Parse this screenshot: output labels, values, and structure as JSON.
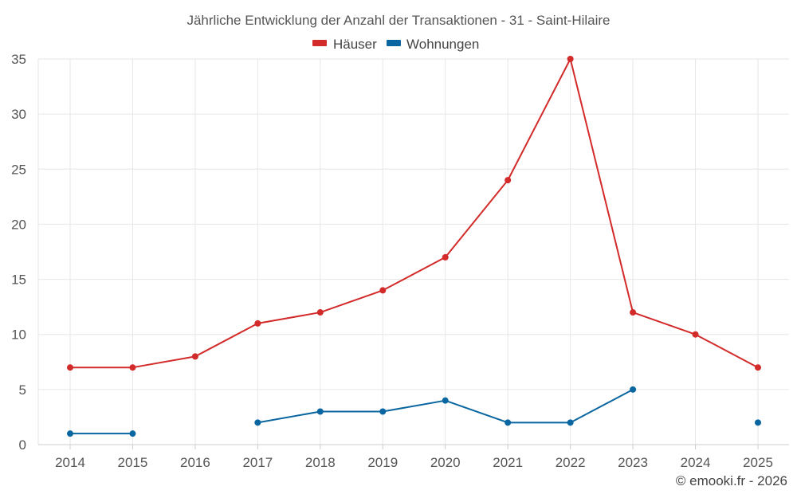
{
  "chart_data": {
    "type": "line",
    "title": "Jährliche Entwicklung der Anzahl der Transaktionen - 31 - Saint-Hilaire",
    "categories": [
      "2014",
      "2015",
      "2016",
      "2017",
      "2018",
      "2019",
      "2020",
      "2021",
      "2022",
      "2023",
      "2024",
      "2025"
    ],
    "y_ticks": [
      "0",
      "5",
      "10",
      "15",
      "20",
      "25",
      "30",
      "35"
    ],
    "ylim": [
      0,
      35
    ],
    "grid": true,
    "legend_position": "top-center",
    "series": [
      {
        "name": "Häuser",
        "color": "#d32a2a",
        "values": [
          7,
          7,
          8,
          11,
          12,
          14,
          17,
          24,
          35,
          12,
          10,
          7
        ]
      },
      {
        "name": "Wohnungen",
        "color": "#0a66a0",
        "values": [
          1,
          1,
          null,
          2,
          3,
          3,
          4,
          2,
          2,
          5,
          null,
          2
        ]
      }
    ],
    "credit": "© emooki.fr - 2026"
  }
}
